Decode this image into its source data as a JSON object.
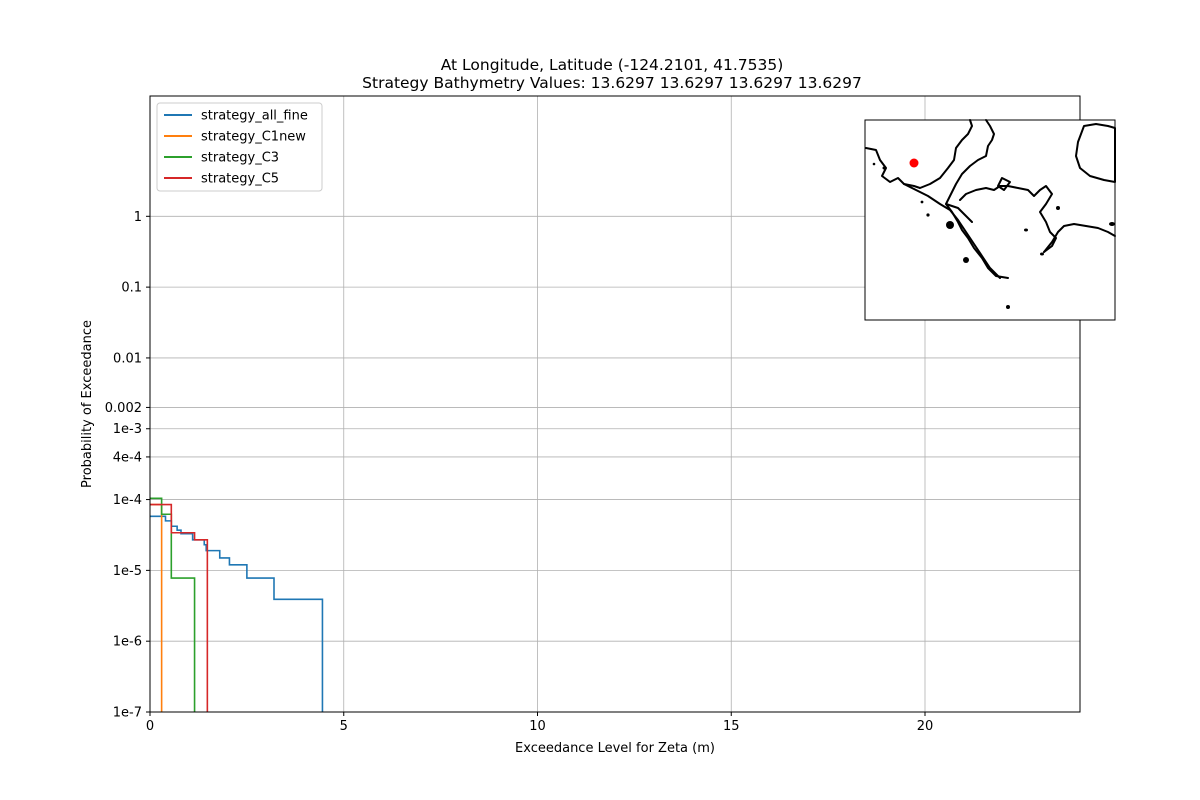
{
  "chart_data": {
    "type": "line",
    "title": "At Longitude, Latitude (-124.2101,  41.7535)",
    "subtitle": "Strategy Bathymetry Values:   13.6297   13.6297   13.6297   13.6297",
    "xlabel": "Exceedance Level for Zeta (m)",
    "ylabel": "Probability of Exceedance",
    "xlim": [
      0,
      24
    ],
    "ylim": [
      1e-07,
      50
    ],
    "yscale": "log",
    "grid": true,
    "legend_position": "top-left",
    "x_ticks": [
      {
        "value": 0,
        "label": "0"
      },
      {
        "value": 5,
        "label": "5"
      },
      {
        "value": 10,
        "label": "10"
      },
      {
        "value": 15,
        "label": "15"
      },
      {
        "value": 20,
        "label": "20"
      }
    ],
    "y_ticks": [
      {
        "value": 1,
        "label": "1"
      },
      {
        "value": 0.1,
        "label": "0.1"
      },
      {
        "value": 0.01,
        "label": "0.01"
      },
      {
        "value": 0.002,
        "label": "0.002"
      },
      {
        "value": 0.001,
        "label": "1e-3"
      },
      {
        "value": 0.0004,
        "label": "4e-4"
      },
      {
        "value": 0.0001,
        "label": "1e-4"
      },
      {
        "value": 1e-05,
        "label": "1e-5"
      },
      {
        "value": 1e-06,
        "label": "1e-6"
      },
      {
        "value": 1e-07,
        "label": "1e-7"
      }
    ],
    "series": [
      {
        "name": "strategy_all_fine",
        "color": "#1f77b4",
        "points": [
          [
            0,
            5.8e-05
          ],
          [
            0.4,
            5.8e-05
          ],
          [
            0.4,
            5e-05
          ],
          [
            0.55,
            5e-05
          ],
          [
            0.55,
            4.2e-05
          ],
          [
            0.7,
            4.2e-05
          ],
          [
            0.7,
            3.7e-05
          ],
          [
            0.8,
            3.7e-05
          ],
          [
            0.8,
            3.3e-05
          ],
          [
            1.1,
            3.3e-05
          ],
          [
            1.1,
            2.7e-05
          ],
          [
            1.4,
            2.7e-05
          ],
          [
            1.4,
            2.3e-05
          ],
          [
            1.45,
            2.3e-05
          ],
          [
            1.45,
            1.9e-05
          ],
          [
            1.8,
            1.9e-05
          ],
          [
            1.8,
            1.5e-05
          ],
          [
            2.05,
            1.5e-05
          ],
          [
            2.05,
            1.2e-05
          ],
          [
            2.5,
            1.2e-05
          ],
          [
            2.5,
            7.8e-06
          ],
          [
            3.2,
            7.8e-06
          ],
          [
            3.2,
            3.9e-06
          ],
          [
            4.45,
            3.9e-06
          ],
          [
            4.45,
            1e-07
          ]
        ]
      },
      {
        "name": "strategy_C1new",
        "color": "#ff7f0e",
        "points": [
          [
            0,
            8.5e-05
          ],
          [
            0.3,
            8.5e-05
          ],
          [
            0.3,
            1e-07
          ]
        ]
      },
      {
        "name": "strategy_C3",
        "color": "#2ca02c",
        "points": [
          [
            0,
            0.000104
          ],
          [
            0.3,
            0.000104
          ],
          [
            0.3,
            6.2e-05
          ],
          [
            0.55,
            6.2e-05
          ],
          [
            0.55,
            7.8e-06
          ],
          [
            1.15,
            7.8e-06
          ],
          [
            1.15,
            1e-07
          ]
        ]
      },
      {
        "name": "strategy_C5",
        "color": "#d62728",
        "points": [
          [
            0,
            8.5e-05
          ],
          [
            0.55,
            8.5e-05
          ],
          [
            0.55,
            3.4e-05
          ],
          [
            1.15,
            3.4e-05
          ],
          [
            1.15,
            2.7e-05
          ],
          [
            1.48,
            2.7e-05
          ],
          [
            1.48,
            1e-07
          ]
        ]
      }
    ],
    "inset_map": {
      "marker_color": "#ff0000",
      "coastline_color": "#000000"
    }
  }
}
